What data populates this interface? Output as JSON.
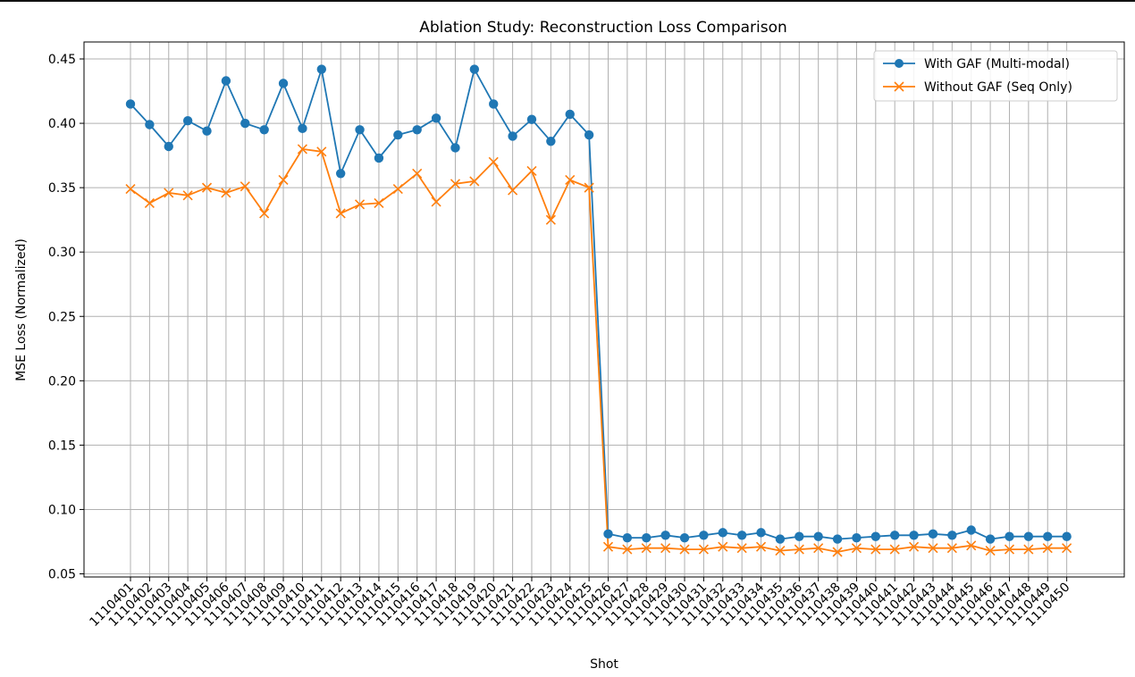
{
  "chart_data": {
    "type": "line",
    "title": "Ablation Study: Reconstruction Loss Comparison",
    "xlabel": "Shot",
    "ylabel": "MSE Loss (Normalized)",
    "ylim": [
      0.05,
      0.45
    ],
    "yticks": [
      "0.05",
      "0.10",
      "0.15",
      "0.20",
      "0.25",
      "0.30",
      "0.35",
      "0.40",
      "0.45"
    ],
    "grid": true,
    "legend_position": "top-right",
    "categories": [
      "1110401",
      "1110402",
      "1110403",
      "1110404",
      "1110405",
      "1110406",
      "1110407",
      "1110408",
      "1110409",
      "1110410",
      "1110411",
      "1110412",
      "1110413",
      "1110414",
      "1110415",
      "1110416",
      "1110417",
      "1110418",
      "1110419",
      "1110420",
      "1110421",
      "1110422",
      "1110423",
      "1110424",
      "1110425",
      "1110426",
      "1110427",
      "1110428",
      "1110429",
      "1110430",
      "1110431",
      "1110432",
      "1110433",
      "1110434",
      "1110435",
      "1110436",
      "1110437",
      "1110438",
      "1110439",
      "1110440",
      "1110441",
      "1110442",
      "1110443",
      "1110444",
      "1110445",
      "1110446",
      "1110447",
      "1110448",
      "1110449",
      "1110450"
    ],
    "series": [
      {
        "name": "With GAF (Multi-modal)",
        "color": "#1f77b4",
        "marker": "circle",
        "values": [
          0.415,
          0.399,
          0.382,
          0.402,
          0.394,
          0.433,
          0.4,
          0.395,
          0.431,
          0.396,
          0.442,
          0.361,
          0.395,
          0.373,
          0.391,
          0.395,
          0.404,
          0.381,
          0.442,
          0.415,
          0.39,
          0.403,
          0.386,
          0.407,
          0.391,
          0.081,
          0.078,
          0.078,
          0.08,
          0.078,
          0.08,
          0.082,
          0.08,
          0.082,
          0.077,
          0.079,
          0.079,
          0.077,
          0.078,
          0.079,
          0.08,
          0.08,
          0.081,
          0.08,
          0.084,
          0.077,
          0.079,
          0.079,
          0.079,
          0.079
        ]
      },
      {
        "name": "Without GAF (Seq Only)",
        "color": "#ff7f0e",
        "marker": "x",
        "values": [
          0.349,
          0.338,
          0.346,
          0.344,
          0.35,
          0.346,
          0.351,
          0.33,
          0.356,
          0.38,
          0.378,
          0.33,
          0.337,
          0.338,
          0.349,
          0.361,
          0.339,
          0.353,
          0.355,
          0.37,
          0.348,
          0.363,
          0.325,
          0.356,
          0.35,
          0.071,
          0.069,
          0.07,
          0.07,
          0.069,
          0.069,
          0.071,
          0.07,
          0.071,
          0.068,
          0.069,
          0.07,
          0.067,
          0.07,
          0.069,
          0.069,
          0.071,
          0.07,
          0.07,
          0.072,
          0.068,
          0.069,
          0.069,
          0.07,
          0.07
        ]
      }
    ]
  }
}
